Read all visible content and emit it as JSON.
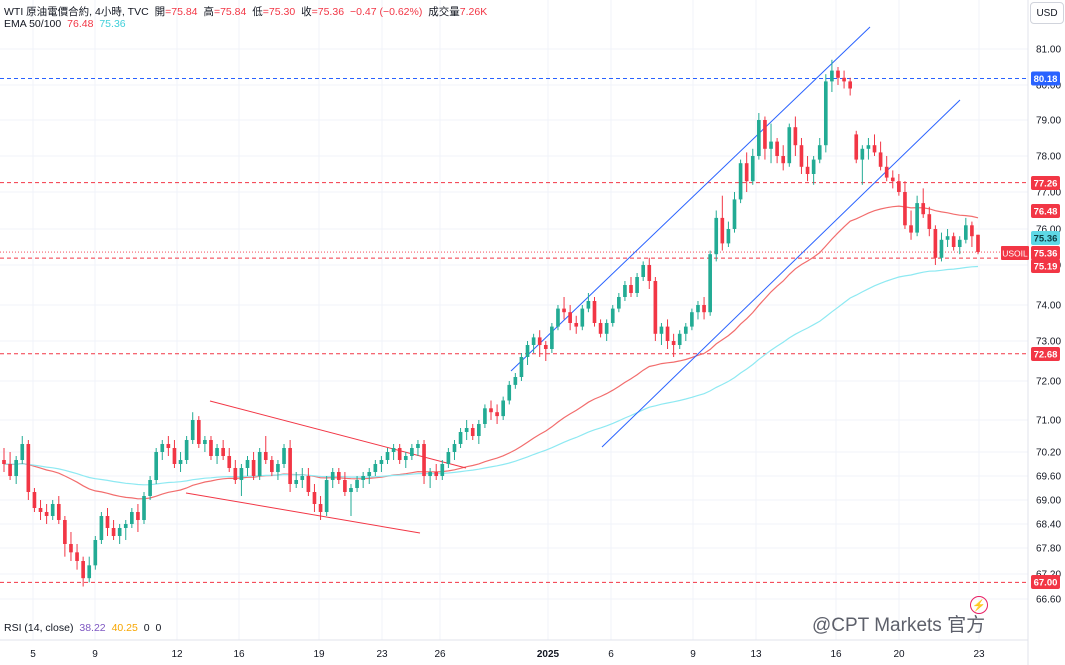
{
  "header": {
    "symbol": "WTI 原油電價合約, 4小時, TVC",
    "open_label": "開",
    "open_value": "=75.84",
    "high_label": "高",
    "high_value": "=75.84",
    "low_label": "低",
    "low_value": "=75.30",
    "close_label": "收",
    "close_value": "=75.36",
    "change": "−0.47 (−0.62%)",
    "volume_label": "成交量",
    "volume_value": "7.26K",
    "ema_label": "EMA 50/100",
    "ema50_value": "76.48",
    "ema100_value": "75.36"
  },
  "rsi": {
    "label": "RSI (14, close)",
    "v1": "38.22",
    "v2": "40.25",
    "v3": "0",
    "v4": "0"
  },
  "currency_button": "USD",
  "watermark": "@CPT Markets 官方",
  "icons": {
    "bolt": "bolt-icon"
  },
  "colors": {
    "up": "#22ab94",
    "down": "#f23645",
    "ema50": "#f26d6d",
    "ema100": "#8ee9f2",
    "channel": "#2962ff",
    "wedge": "#f23645",
    "level_blue": "#2962ff",
    "level_red": "#f23645"
  },
  "chart_data": {
    "type": "candlestick",
    "y_axis_ticks": [
      "81.00",
      "80.00",
      "79.00",
      "78.00",
      "77.00",
      "76.00",
      "75.00",
      "74.00",
      "73.00",
      "72.00",
      "71.00",
      "70.20",
      "69.60",
      "69.00",
      "68.40",
      "67.80",
      "67.20",
      "66.60"
    ],
    "x_axis_ticks": [
      "5",
      "9",
      "12",
      "16",
      "19",
      "23",
      "26",
      "2025",
      "6",
      "9",
      "13",
      "16",
      "20",
      "23"
    ],
    "price_labels": [
      {
        "text": "80.18",
        "value": 80.18,
        "style": "blue"
      },
      {
        "text": "77.26",
        "value": 77.26,
        "style": "red"
      },
      {
        "text": "76.48",
        "value": 76.48,
        "style": "red"
      },
      {
        "text": "75.36",
        "value": 75.36,
        "style": "cyan"
      },
      {
        "text": "75.36",
        "value": 75.36,
        "style": "red",
        "prefix": "USOIL"
      },
      {
        "text": "75.19",
        "value": 75.19,
        "style": "red"
      },
      {
        "text": "72.68",
        "value": 72.68,
        "style": "red"
      },
      {
        "text": "67.00",
        "value": 67.0,
        "style": "red"
      }
    ],
    "horizontal_levels": [
      80.18,
      77.26,
      75.19,
      72.68,
      67.0
    ],
    "ohlc": [
      [
        70.0,
        70.3,
        69.7,
        69.9
      ],
      [
        69.9,
        70.2,
        69.5,
        69.6
      ],
      [
        69.6,
        70.1,
        69.4,
        70.0
      ],
      [
        70.0,
        70.6,
        69.9,
        70.4
      ],
      [
        70.4,
        70.5,
        69.0,
        69.2
      ],
      [
        69.2,
        69.3,
        68.7,
        68.8
      ],
      [
        68.8,
        69.0,
        68.5,
        68.7
      ],
      [
        68.7,
        68.9,
        68.4,
        68.6
      ],
      [
        68.6,
        69.0,
        68.5,
        68.9
      ],
      [
        68.9,
        69.1,
        68.4,
        68.5
      ],
      [
        68.5,
        68.6,
        67.6,
        67.9
      ],
      [
        67.9,
        68.2,
        67.5,
        67.7
      ],
      [
        67.7,
        67.9,
        67.3,
        67.5
      ],
      [
        67.5,
        67.6,
        66.9,
        67.1
      ],
      [
        67.1,
        67.6,
        67.0,
        67.4
      ],
      [
        67.4,
        68.1,
        67.3,
        68.0
      ],
      [
        68.0,
        68.7,
        67.9,
        68.6
      ],
      [
        68.6,
        68.8,
        68.1,
        68.3
      ],
      [
        68.3,
        68.5,
        68.0,
        68.1
      ],
      [
        68.1,
        68.4,
        67.9,
        68.3
      ],
      [
        68.3,
        68.5,
        68.0,
        68.4
      ],
      [
        68.4,
        68.8,
        68.3,
        68.7
      ],
      [
        68.7,
        68.9,
        68.2,
        68.5
      ],
      [
        68.5,
        69.2,
        68.4,
        69.1
      ],
      [
        69.1,
        69.6,
        69.0,
        69.5
      ],
      [
        69.5,
        70.3,
        69.4,
        70.2
      ],
      [
        70.2,
        70.5,
        70.0,
        70.4
      ],
      [
        70.4,
        70.6,
        70.1,
        70.3
      ],
      [
        70.3,
        70.5,
        69.8,
        69.9
      ],
      [
        69.9,
        70.2,
        69.7,
        70.0
      ],
      [
        70.0,
        70.6,
        69.9,
        70.5
      ],
      [
        70.5,
        71.2,
        70.4,
        71.0
      ],
      [
        71.0,
        71.1,
        70.3,
        70.4
      ],
      [
        70.4,
        70.6,
        70.2,
        70.5
      ],
      [
        70.5,
        70.6,
        70.0,
        70.1
      ],
      [
        70.1,
        70.4,
        69.9,
        70.3
      ],
      [
        70.3,
        70.5,
        70.0,
        70.1
      ],
      [
        70.1,
        70.3,
        69.7,
        69.8
      ],
      [
        69.8,
        70.0,
        69.4,
        69.5
      ],
      [
        69.5,
        69.9,
        69.1,
        69.8
      ],
      [
        69.8,
        70.1,
        69.6,
        70.0
      ],
      [
        70.0,
        70.2,
        69.5,
        69.6
      ],
      [
        69.6,
        70.3,
        69.5,
        70.2
      ],
      [
        70.2,
        70.6,
        69.9,
        70.0
      ],
      [
        70.0,
        70.1,
        69.6,
        69.7
      ],
      [
        69.7,
        70.0,
        69.5,
        69.9
      ],
      [
        69.9,
        70.4,
        69.8,
        70.3
      ],
      [
        70.3,
        70.5,
        69.2,
        69.4
      ],
      [
        69.4,
        69.7,
        69.3,
        69.5
      ],
      [
        69.5,
        69.8,
        69.3,
        69.6
      ],
      [
        69.6,
        69.8,
        69.1,
        69.2
      ],
      [
        69.2,
        69.4,
        68.7,
        68.9
      ],
      [
        68.9,
        69.1,
        68.5,
        68.7
      ],
      [
        68.7,
        69.6,
        68.6,
        69.5
      ],
      [
        69.5,
        69.8,
        69.3,
        69.7
      ],
      [
        69.7,
        69.8,
        69.4,
        69.5
      ],
      [
        69.5,
        69.7,
        69.1,
        69.2
      ],
      [
        69.2,
        69.4,
        68.6,
        69.3
      ],
      [
        69.3,
        69.6,
        69.2,
        69.5
      ],
      [
        69.5,
        69.7,
        69.3,
        69.6
      ],
      [
        69.6,
        69.8,
        69.4,
        69.7
      ],
      [
        69.7,
        70.0,
        69.6,
        69.9
      ],
      [
        69.9,
        70.1,
        69.7,
        70.0
      ],
      [
        70.0,
        70.3,
        69.9,
        70.2
      ],
      [
        70.2,
        70.4,
        70.0,
        70.3
      ],
      [
        70.3,
        70.4,
        69.9,
        70.0
      ],
      [
        70.0,
        70.2,
        69.8,
        70.1
      ],
      [
        70.1,
        70.4,
        70.0,
        70.3
      ],
      [
        70.3,
        70.5,
        70.1,
        70.4
      ],
      [
        70.4,
        70.5,
        69.4,
        69.6
      ],
      [
        69.6,
        69.8,
        69.3,
        69.7
      ],
      [
        69.7,
        69.9,
        69.5,
        69.6
      ],
      [
        69.6,
        70.0,
        69.5,
        69.9
      ],
      [
        69.9,
        70.3,
        69.8,
        70.2
      ],
      [
        70.2,
        70.5,
        70.0,
        70.4
      ],
      [
        70.4,
        70.8,
        70.3,
        70.7
      ],
      [
        70.7,
        71.0,
        70.5,
        70.8
      ],
      [
        70.8,
        70.9,
        70.5,
        70.6
      ],
      [
        70.6,
        71.0,
        70.4,
        70.9
      ],
      [
        70.9,
        71.4,
        70.8,
        71.3
      ],
      [
        71.3,
        71.5,
        71.0,
        71.2
      ],
      [
        71.2,
        71.4,
        70.9,
        71.1
      ],
      [
        71.1,
        71.6,
        71.0,
        71.5
      ],
      [
        71.5,
        72.0,
        71.4,
        71.9
      ],
      [
        71.9,
        72.2,
        71.8,
        72.1
      ],
      [
        72.1,
        72.7,
        72.0,
        72.6
      ],
      [
        72.6,
        73.0,
        72.4,
        72.9
      ],
      [
        72.9,
        73.2,
        72.7,
        73.1
      ],
      [
        73.1,
        73.3,
        72.6,
        72.9
      ],
      [
        72.9,
        73.0,
        72.5,
        72.8
      ],
      [
        72.8,
        73.5,
        72.7,
        73.4
      ],
      [
        73.4,
        74.0,
        73.3,
        73.9
      ],
      [
        73.9,
        74.2,
        73.6,
        73.8
      ],
      [
        73.8,
        74.0,
        73.3,
        73.5
      ],
      [
        73.5,
        73.7,
        73.2,
        73.4
      ],
      [
        73.4,
        74.0,
        73.3,
        73.9
      ],
      [
        73.9,
        74.3,
        73.8,
        74.1
      ],
      [
        74.1,
        74.2,
        73.4,
        73.5
      ],
      [
        73.5,
        73.6,
        73.1,
        73.2
      ],
      [
        73.2,
        73.6,
        73.0,
        73.5
      ],
      [
        73.5,
        74.0,
        73.4,
        73.9
      ],
      [
        73.9,
        74.3,
        73.8,
        74.2
      ],
      [
        74.2,
        74.6,
        74.1,
        74.5
      ],
      [
        74.5,
        74.7,
        74.2,
        74.3
      ],
      [
        74.3,
        74.8,
        74.2,
        74.7
      ],
      [
        74.7,
        75.1,
        74.6,
        75.0
      ],
      [
        75.0,
        75.2,
        74.4,
        74.6
      ],
      [
        74.6,
        74.7,
        73.0,
        73.2
      ],
      [
        73.2,
        73.5,
        72.9,
        73.4
      ],
      [
        73.4,
        73.6,
        72.8,
        73.0
      ],
      [
        73.0,
        73.2,
        72.6,
        72.9
      ],
      [
        72.9,
        73.3,
        72.8,
        73.2
      ],
      [
        73.2,
        73.5,
        73.0,
        73.4
      ],
      [
        73.4,
        73.9,
        73.3,
        73.8
      ],
      [
        73.8,
        74.1,
        73.6,
        74.0
      ],
      [
        74.0,
        74.2,
        73.6,
        73.8
      ],
      [
        73.8,
        75.4,
        73.7,
        75.3
      ],
      [
        75.3,
        76.5,
        75.1,
        76.3
      ],
      [
        76.3,
        76.9,
        75.4,
        75.6
      ],
      [
        75.6,
        76.2,
        75.5,
        76.0
      ],
      [
        76.0,
        77.0,
        75.9,
        76.8
      ],
      [
        76.8,
        77.9,
        76.7,
        77.8
      ],
      [
        77.8,
        78.1,
        77.0,
        77.3
      ],
      [
        77.3,
        78.2,
        77.2,
        78.0
      ],
      [
        78.0,
        79.2,
        77.9,
        79.0
      ],
      [
        79.0,
        79.1,
        77.9,
        78.2
      ],
      [
        78.2,
        78.9,
        77.8,
        78.4
      ],
      [
        78.4,
        78.5,
        77.8,
        78.0
      ],
      [
        78.0,
        78.3,
        77.6,
        77.8
      ],
      [
        77.8,
        78.9,
        77.7,
        78.8
      ],
      [
        78.8,
        79.1,
        78.0,
        78.3
      ],
      [
        78.3,
        78.5,
        77.5,
        77.7
      ],
      [
        77.7,
        78.0,
        77.3,
        77.5
      ],
      [
        77.5,
        78.0,
        77.2,
        77.9
      ],
      [
        77.9,
        78.5,
        77.8,
        78.3
      ],
      [
        78.3,
        80.3,
        78.1,
        80.1
      ],
      [
        80.1,
        80.7,
        79.8,
        80.4
      ],
      [
        80.4,
        80.5,
        80.0,
        80.2
      ],
      [
        80.2,
        80.4,
        79.9,
        80.1
      ],
      [
        80.1,
        80.2,
        79.7,
        79.9
      ],
      [
        78.6,
        78.7,
        77.8,
        77.9
      ],
      [
        77.9,
        78.3,
        77.2,
        78.2
      ],
      [
        78.2,
        78.5,
        77.9,
        78.3
      ],
      [
        78.3,
        78.6,
        78.0,
        78.1
      ],
      [
        78.1,
        78.4,
        77.6,
        77.7
      ],
      [
        77.7,
        78.0,
        77.3,
        77.4
      ],
      [
        77.4,
        77.6,
        77.1,
        77.3
      ],
      [
        77.3,
        77.5,
        76.9,
        77.0
      ],
      [
        77.0,
        77.3,
        76.0,
        76.1
      ],
      [
        76.1,
        76.5,
        75.7,
        75.9
      ],
      [
        75.9,
        76.9,
        75.8,
        76.7
      ],
      [
        76.7,
        77.1,
        76.3,
        76.4
      ],
      [
        76.4,
        76.6,
        75.8,
        76.0
      ],
      [
        76.0,
        76.1,
        75.0,
        75.2
      ],
      [
        75.2,
        75.9,
        75.1,
        75.7
      ],
      [
        75.7,
        76.0,
        75.5,
        75.8
      ],
      [
        75.8,
        75.9,
        75.4,
        75.5
      ],
      [
        75.5,
        75.8,
        75.3,
        75.7
      ],
      [
        75.7,
        76.3,
        75.6,
        76.1
      ],
      [
        76.1,
        76.2,
        75.5,
        75.8
      ],
      [
        75.84,
        75.84,
        75.3,
        75.36
      ]
    ]
  }
}
